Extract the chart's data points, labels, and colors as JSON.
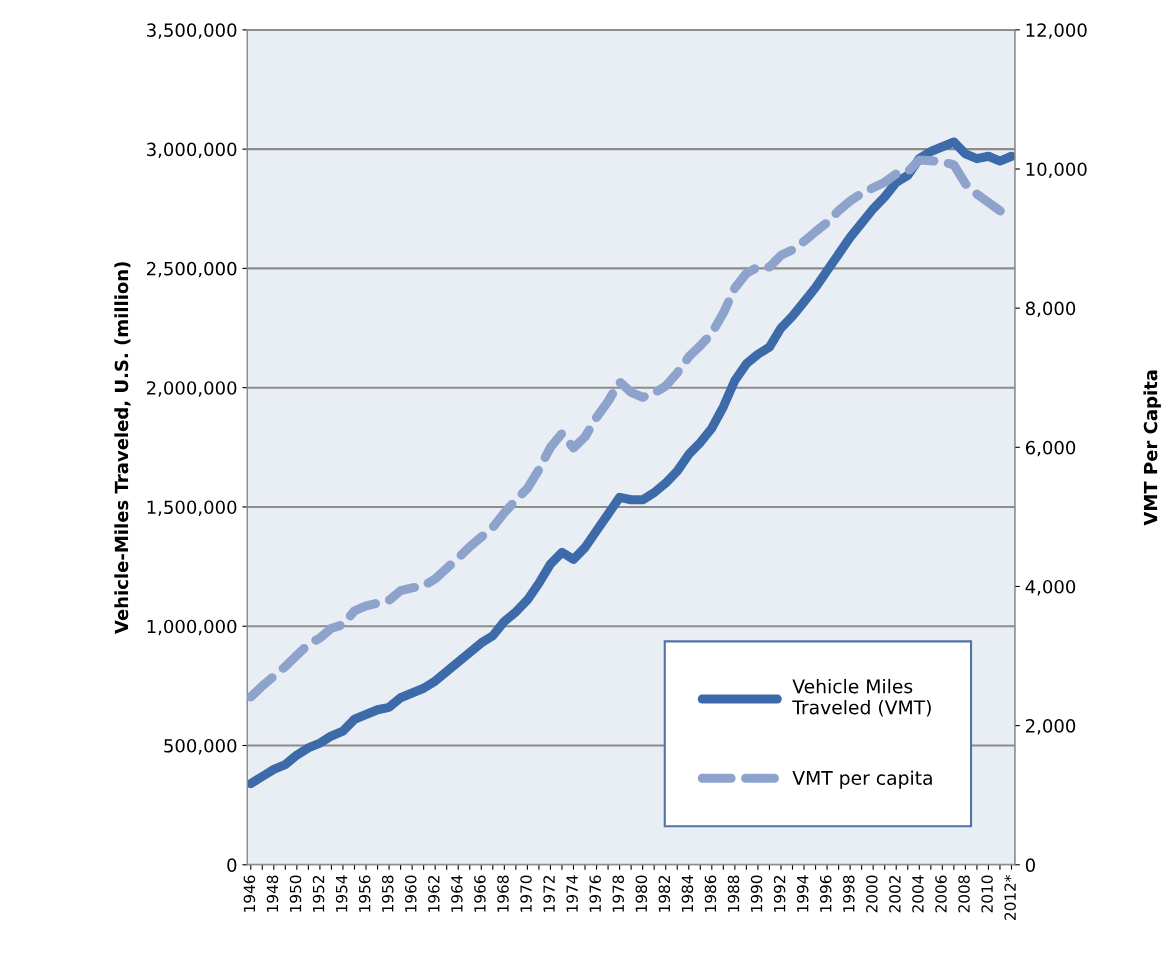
{
  "chart_data": {
    "type": "line",
    "ylabel": "Vehicle-Miles Traveled, U.S. (million)",
    "y2label": "VMT Per Capita",
    "categories": [
      "1946",
      null,
      "1948",
      null,
      "1950",
      null,
      "1952",
      null,
      "1954",
      null,
      "1956",
      null,
      "1958",
      null,
      "1960",
      null,
      "1962",
      null,
      "1964",
      null,
      "1966",
      null,
      "1968",
      null,
      "1970",
      null,
      "1972",
      null,
      "1974",
      null,
      "1976",
      null,
      "1978",
      null,
      "1980",
      null,
      "1982",
      null,
      "1984",
      null,
      "1986",
      null,
      "1988",
      null,
      "1990",
      null,
      "1992",
      null,
      "1994",
      null,
      "1996",
      null,
      "1998",
      null,
      "2000",
      null,
      "2002",
      null,
      "2004",
      null,
      "2006",
      null,
      "2008",
      null,
      "2010",
      null,
      "2012*"
    ],
    "series": [
      {
        "name": "Vehicle Miles Traveled (VMT)",
        "color": "#3d6aa8",
        "line_style": "solid",
        "values": [
          340000,
          370000,
          400000,
          420000,
          460000,
          490000,
          510000,
          540000,
          560000,
          610000,
          630000,
          650000,
          660000,
          700000,
          720000,
          740000,
          770000,
          810000,
          850000,
          890000,
          930000,
          960000,
          1020000,
          1060000,
          1110000,
          1180000,
          1260000,
          1310000,
          1280000,
          1330000,
          1400000,
          1470000,
          1540000,
          1530000,
          1530000,
          1560000,
          1600000,
          1650000,
          1720000,
          1770000,
          1830000,
          1920000,
          2030000,
          2100000,
          2140000,
          2170000,
          2250000,
          2300000,
          2360000,
          2420000,
          2490000,
          2560000,
          2630000,
          2690000,
          2750000,
          2800000,
          2860000,
          2890000,
          2960000,
          2990000,
          3010000,
          3030000,
          2980000,
          2960000,
          2970000,
          2950000,
          2970000
        ]
      },
      {
        "name": "VMT per capita",
        "color": "#8ea3cb",
        "axis": "y2",
        "line_style": "dashed",
        "values": [
          2410,
          2570,
          2710,
          2850,
          3010,
          3170,
          3260,
          3400,
          3450,
          3650,
          3720,
          3760,
          3800,
          3940,
          3980,
          4010,
          4110,
          4260,
          4410,
          4570,
          4710,
          4850,
          5060,
          5240,
          5410,
          5680,
          6000,
          6200,
          5990,
          6150,
          6430,
          6660,
          6940,
          6790,
          6720,
          6780,
          6880,
          7070,
          7300,
          7460,
          7640,
          7930,
          8290,
          8500,
          8590,
          8590,
          8760,
          8840,
          8960,
          9100,
          9230,
          9400,
          9540,
          9650,
          9730,
          9810,
          9930,
          9960,
          10130,
          10120,
          10100,
          10060,
          9790,
          9640,
          9520,
          9400,
          9320
        ]
      }
    ],
    "ylim": [
      0,
      3500000
    ],
    "yticks": [
      {
        "value": 0,
        "label": "0"
      },
      {
        "value": 500000,
        "label": "500,000"
      },
      {
        "value": 1000000,
        "label": "1,000,000"
      },
      {
        "value": 1500000,
        "label": "1,500,000"
      },
      {
        "value": 2000000,
        "label": "2,000,000"
      },
      {
        "value": 2500000,
        "label": "2,500,000"
      },
      {
        "value": 3000000,
        "label": "3,000,000"
      },
      {
        "value": 3500000,
        "label": "3,500,000"
      }
    ],
    "y2lim": [
      0,
      12000
    ],
    "y2ticks": [
      {
        "value": 0,
        "label": "0"
      },
      {
        "value": 2000,
        "label": "2,000"
      },
      {
        "value": 4000,
        "label": "4,000"
      },
      {
        "value": 6000,
        "label": "6,000"
      },
      {
        "value": 8000,
        "label": "8,000"
      },
      {
        "value": 10000,
        "label": "10,000"
      },
      {
        "value": 12000,
        "label": "12,000"
      }
    ],
    "grid": "y",
    "legend": "bottom right",
    "marker": "none"
  }
}
